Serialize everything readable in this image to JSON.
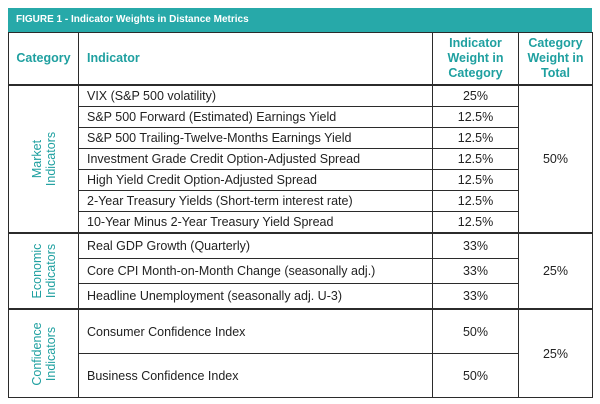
{
  "figure": {
    "caption_prefix": "FIGURE 1",
    "caption_title": " - Indicator Weights in Distance Metrics"
  },
  "table": {
    "headers": {
      "category": "Category",
      "indicator": "Indicator",
      "weight_in_category": "Indicator Weight in Category",
      "category_weight_in_total": "Category Weight in Total"
    },
    "groups": [
      {
        "label_line1": "Market",
        "label_line2": "Indicators",
        "total_weight": "50%",
        "rows": [
          {
            "indicator": "VIX (S&P 500 volatility)",
            "weight": "25%"
          },
          {
            "indicator": "S&P 500 Forward (Estimated) Earnings Yield",
            "weight": "12.5%"
          },
          {
            "indicator": "S&P 500 Trailing-Twelve-Months Earnings Yield",
            "weight": "12.5%"
          },
          {
            "indicator": "Investment Grade Credit Option-Adjusted Spread",
            "weight": "12.5%"
          },
          {
            "indicator": "High Yield Credit Option-Adjusted Spread",
            "weight": "12.5%"
          },
          {
            "indicator": "2-Year Treasury Yields (Short-term interest rate)",
            "weight": "12.5%"
          },
          {
            "indicator": "10-Year Minus 2-Year Treasury Yield Spread",
            "weight": "12.5%"
          }
        ]
      },
      {
        "label_line1": "Economic",
        "label_line2": "Indicators",
        "total_weight": "25%",
        "rows": [
          {
            "indicator": "Real GDP Growth (Quarterly)",
            "weight": "33%"
          },
          {
            "indicator": "Core CPI Month-on-Month Change (seasonally adj.)",
            "weight": "33%"
          },
          {
            "indicator": "Headline Unemployment (seasonally adj. U-3)",
            "weight": "33%"
          }
        ]
      },
      {
        "label_line1": "Confidence",
        "label_line2": "Indicators",
        "total_weight": "25%",
        "rows": [
          {
            "indicator": "Consumer Confidence Index",
            "weight": "50%"
          },
          {
            "indicator": "Business Confidence Index",
            "weight": "50%"
          }
        ]
      }
    ]
  }
}
